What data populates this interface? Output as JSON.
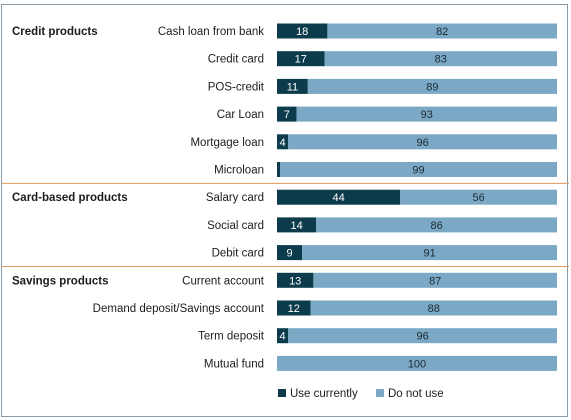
{
  "chart_data": {
    "type": "bar",
    "stacked": true,
    "percent": true,
    "groups": [
      {
        "name": "Credit products",
        "categories": [
          "Cash loan from bank",
          "Credit card",
          "POS-credit",
          "Car Loan",
          "Mortgage  loan",
          "Microloan"
        ]
      },
      {
        "name": "Card-based products",
        "categories": [
          "Salary card",
          "Social card",
          "Debit card"
        ]
      },
      {
        "name": "Savings products",
        "categories": [
          "Current account",
          "Demand deposit/Savings account",
          "Term deposit",
          "Mutual fund"
        ]
      }
    ],
    "categories": [
      "Cash loan from bank",
      "Credit card",
      "POS-credit",
      "Car Loan",
      "Mortgage  loan",
      "Microloan",
      "Salary card",
      "Social card",
      "Debit card",
      "Current account",
      "Demand deposit/Savings account",
      "Term deposit",
      "Mutual fund"
    ],
    "series": [
      {
        "name": "Use currently",
        "color": "#0c3b4c",
        "label_color": "#ffffff",
        "values": [
          18,
          17,
          11,
          7,
          4,
          1,
          44,
          14,
          9,
          13,
          12,
          4,
          0
        ]
      },
      {
        "name": "Do not use",
        "color": "#7aa8c5",
        "label_color": "#1c2a33",
        "values": [
          82,
          83,
          89,
          93,
          96,
          99,
          56,
          86,
          91,
          87,
          88,
          96,
          100
        ]
      }
    ],
    "value_labels": [
      [
        "18",
        "82"
      ],
      [
        "17",
        "83"
      ],
      [
        "11",
        "89"
      ],
      [
        "7",
        "93"
      ],
      [
        "4",
        "96"
      ],
      [
        "",
        "99"
      ],
      [
        "44",
        "56"
      ],
      [
        "14",
        "86"
      ],
      [
        "9",
        "91"
      ],
      [
        "13",
        "87"
      ],
      [
        "12",
        "88"
      ],
      [
        "4",
        "96"
      ],
      [
        "",
        "100"
      ]
    ],
    "xlim": [
      0,
      100
    ],
    "legend": {
      "position": "bottom",
      "entries": [
        "Use currently",
        "Do not use"
      ]
    },
    "separator_color": "#e29a5a",
    "grid": false
  }
}
